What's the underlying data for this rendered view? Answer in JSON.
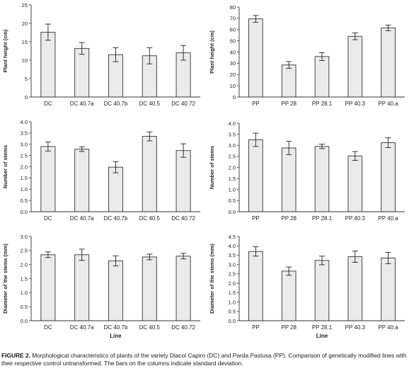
{
  "caption": {
    "label": "FIGURE 2.",
    "text": "Morphological characteristics of plants of the variety Diacol Capiro (DC) and Parda Pastusa (PP). Comparison of genetically modified lines with their respective control untransformed. The bars on the columns indicate standard deviation."
  },
  "colors": {
    "bar_fill": "#ebebeb",
    "bar_stroke": "#333333",
    "axis": "#333333"
  },
  "chart_data": [
    {
      "type": "bar",
      "title": "",
      "xlabel": "",
      "ylabel": "Plant height (cm)",
      "categories": [
        "DC",
        "DC 40.7a",
        "DC 40.7b",
        "DC 40.5",
        "DC 40.72"
      ],
      "values": [
        17.6,
        13.2,
        11.5,
        11.2,
        12.0
      ],
      "errors": [
        2.2,
        1.6,
        1.9,
        2.2,
        2.0
      ],
      "ylim": [
        0,
        25
      ],
      "yticks": [
        "0",
        "5",
        "10",
        "15",
        "20",
        "25"
      ],
      "grid": false
    },
    {
      "type": "bar",
      "title": "",
      "xlabel": "",
      "ylabel": "Plant height (cm)",
      "categories": [
        "PP",
        "PP 28",
        "PP 28.1",
        "PP 40.3",
        "PP 40.a"
      ],
      "values": [
        69.5,
        28.5,
        36.0,
        54.0,
        61.5
      ],
      "errors": [
        3.0,
        3.0,
        3.5,
        3.0,
        2.5
      ],
      "ylim": [
        0,
        80
      ],
      "yticks": [
        "0",
        "10",
        "20",
        "30",
        "40",
        "50",
        "60",
        "70",
        "80"
      ],
      "grid": false
    },
    {
      "type": "bar",
      "title": "",
      "xlabel": "",
      "ylabel": "Number of stems",
      "categories": [
        "DC",
        "DC 40.7a",
        "DC 40.7b",
        "DC 40.5",
        "DC 40.72"
      ],
      "values": [
        2.9,
        2.78,
        1.98,
        3.35,
        2.72
      ],
      "errors": [
        0.2,
        0.1,
        0.25,
        0.2,
        0.3
      ],
      "ylim": [
        0,
        4.0
      ],
      "yticks": [
        "0.0",
        "0.5",
        "1.0",
        "1.5",
        "2.0",
        "2.5",
        "3.0",
        "3.5",
        "4.0"
      ],
      "grid": false
    },
    {
      "type": "bar",
      "title": "",
      "xlabel": "",
      "ylabel": "Number of stems",
      "categories": [
        "PP",
        "PP 28",
        "PP 28.1",
        "PP 40.3",
        "PP 40.a"
      ],
      "values": [
        3.25,
        2.88,
        2.95,
        2.52,
        3.12
      ],
      "errors": [
        0.3,
        0.3,
        0.1,
        0.2,
        0.22
      ],
      "ylim": [
        0,
        4.0
      ],
      "yticks": [
        "0.0",
        "0.5",
        "1.0",
        "1.5",
        "2.0",
        "2.5",
        "3.0",
        "3.5",
        "4.0"
      ],
      "grid": false
    },
    {
      "type": "bar",
      "title": "",
      "xlabel": "Line",
      "ylabel": "Diameter of the stems (mm)",
      "categories": [
        "DC",
        "DC 40.7a",
        "DC 40.7b",
        "DC 40.5",
        "DC 40.72"
      ],
      "values": [
        2.35,
        2.35,
        2.13,
        2.27,
        2.3
      ],
      "errors": [
        0.1,
        0.2,
        0.18,
        0.1,
        0.1
      ],
      "ylim": [
        0,
        3.0
      ],
      "yticks": [
        "0.0",
        "0.5",
        "1.0",
        "1.5",
        "2.0",
        "2.5",
        "3.0"
      ],
      "grid": false
    },
    {
      "type": "bar",
      "title": "",
      "xlabel": "Line",
      "ylabel": "Diameter of the stems (mm)",
      "categories": [
        "PP",
        "PP 28",
        "PP 28.1",
        "PP 40.3",
        "PP 40.a"
      ],
      "values": [
        3.7,
        2.65,
        3.22,
        3.42,
        3.35
      ],
      "errors": [
        0.25,
        0.22,
        0.23,
        0.3,
        0.3
      ],
      "ylim": [
        0,
        4.5
      ],
      "yticks": [
        "0.0",
        "0.5",
        "1.0",
        "1.5",
        "2.0",
        "2.5",
        "3.0",
        "3.5",
        "4.0",
        "4.5"
      ],
      "grid": false
    }
  ]
}
